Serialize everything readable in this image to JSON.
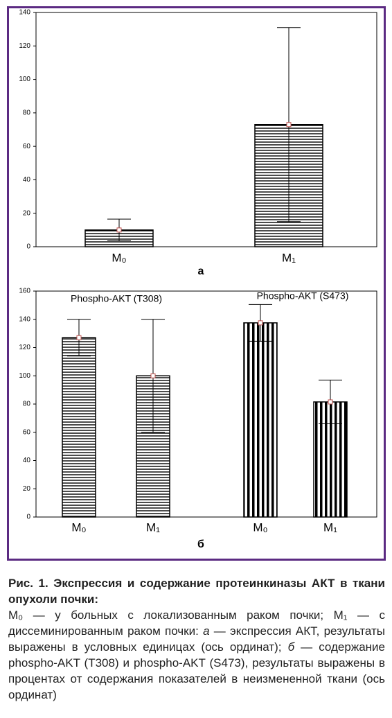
{
  "chart_data": [
    {
      "type": "bar",
      "sublabel": "а",
      "categories": [
        "M₀",
        "M₁"
      ],
      "ylim": [
        0,
        140
      ],
      "yticks": [
        0,
        20,
        40,
        60,
        80,
        100,
        120,
        140
      ],
      "series": [
        {
          "hatch": "horizontal",
          "color": "#000000",
          "values": [
            10,
            73
          ],
          "errors": [
            6.5,
            58
          ]
        }
      ]
    },
    {
      "type": "bar",
      "sublabel": "б",
      "categories": [
        "M₀",
        "M₁",
        "M₀",
        "M₁"
      ],
      "ylim": [
        0,
        160
      ],
      "yticks": [
        0,
        20,
        40,
        60,
        80,
        100,
        120,
        140,
        160
      ],
      "series": [
        {
          "name": "Phospho-AKT (T308)",
          "hatch": "horizontal",
          "color": "#000000",
          "values": [
            127,
            100,
            null,
            null
          ],
          "errors": [
            13,
            40,
            null,
            null
          ]
        },
        {
          "name": "Phospho-AKT (S473)",
          "hatch": "vertical",
          "color": "#000000",
          "values": [
            null,
            null,
            137.5,
            81.5
          ],
          "errors": [
            null,
            null,
            13,
            15.5
          ]
        }
      ]
    }
  ],
  "caption": {
    "title": "Рис. 1. Экспрессия и содержание протеинкиназы АКТ в ткани опухоли почки:",
    "body": [
      "M₀ — у больных с локализованным раком почки; M₁ — с диссеминированным раком почки: ",
      "а",
      " — экспрессия АКТ, результаты выражены в условных единицах (ось ординат); ",
      "б",
      " — содержание phospho-AKT (T308) и phospho-AKT (S473), результаты выражены в процентах от содержания показателей в неизмененной ткани (ось ординат)"
    ]
  }
}
